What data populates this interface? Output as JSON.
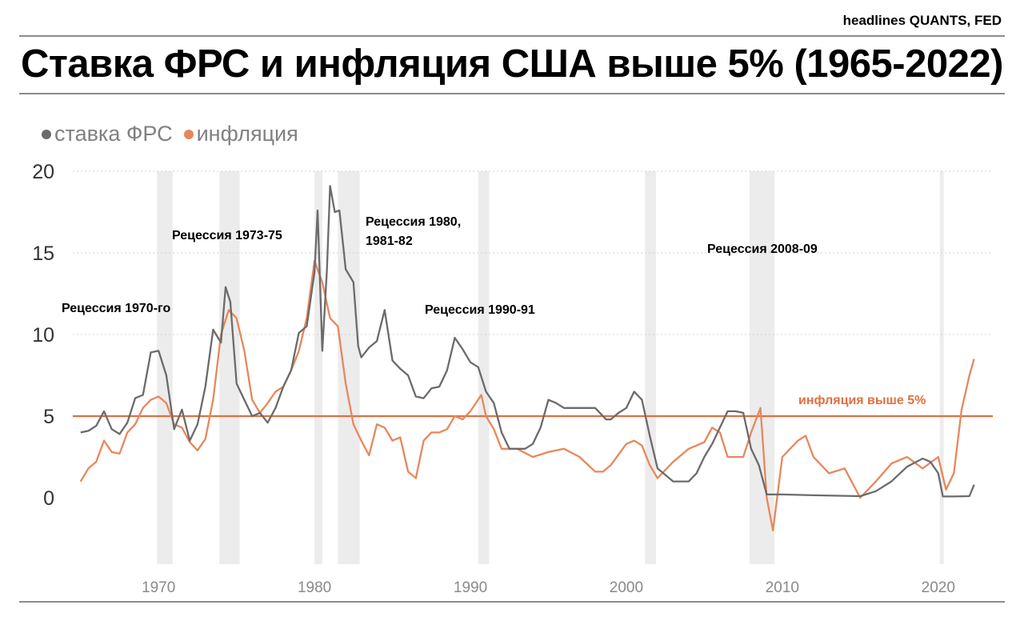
{
  "header": {
    "source": "headlines QUANTS, FED",
    "title": "Ставка ФРС и инфляция США выше 5% (1965-2022)"
  },
  "colors": {
    "fed": "#6b6b6b",
    "inflation": "#e8875a",
    "threshold": "#e07040",
    "recession": "#e6e6e6"
  },
  "legend": [
    {
      "label": "ставка ФРС",
      "color": "#6b6b6b"
    },
    {
      "label": "инфляция",
      "color": "#e8875a"
    }
  ],
  "annotations": {
    "r1970": "Рецессия 1970-го",
    "r1973": "Рецессия 1973-75",
    "r1980_line1": "Рецессия 1980,",
    "r1980_line2": "1981-82",
    "r1990": "Рецессия 1990-91",
    "r2008": "Рецессия 2008-09",
    "threshold_label": "инфляция выше 5%"
  },
  "chart_data": {
    "type": "line",
    "xlim": [
      1964.5,
      2023.5
    ],
    "ylim": [
      -4,
      20
    ],
    "yticks": [
      0,
      5,
      10,
      15,
      20
    ],
    "xticks": [
      1970,
      1980,
      1990,
      2000,
      2010,
      2020
    ],
    "grid": "horizontal dotted",
    "legend_position": "top-left",
    "threshold": 5,
    "recessions": [
      [
        1969.9,
        1970.9
      ],
      [
        1973.9,
        1975.2
      ],
      [
        1980.0,
        1980.5
      ],
      [
        1981.5,
        1982.9
      ],
      [
        1990.5,
        1991.2
      ],
      [
        2001.2,
        2001.9
      ],
      [
        2007.9,
        2009.5
      ],
      [
        2020.1,
        2020.35
      ]
    ],
    "series": [
      {
        "name": "ставка ФРС",
        "x": [
          1965.0,
          1965.5,
          1966.0,
          1966.5,
          1967.0,
          1967.5,
          1968.0,
          1968.5,
          1969.0,
          1969.5,
          1970.0,
          1970.5,
          1971.0,
          1971.5,
          1972.0,
          1972.5,
          1973.0,
          1973.5,
          1974.0,
          1974.3,
          1974.6,
          1975.0,
          1975.5,
          1976.0,
          1976.5,
          1977.0,
          1977.5,
          1978.0,
          1978.5,
          1979.0,
          1979.5,
          1980.0,
          1980.2,
          1980.5,
          1980.8,
          1981.0,
          1981.3,
          1981.6,
          1982.0,
          1982.5,
          1982.8,
          1983.0,
          1983.5,
          1984.0,
          1984.5,
          1985.0,
          1985.5,
          1986.0,
          1986.5,
          1987.0,
          1987.5,
          1988.0,
          1988.5,
          1989.0,
          1989.5,
          1990.0,
          1990.5,
          1991.0,
          1991.5,
          1992.0,
          1992.5,
          1993.0,
          1993.5,
          1994.0,
          1994.5,
          1995.0,
          1995.5,
          1996.0,
          1997.0,
          1998.0,
          1998.7,
          1999.0,
          1999.5,
          2000.0,
          2000.5,
          2001.0,
          2001.5,
          2002.0,
          2003.0,
          2004.0,
          2004.5,
          2005.0,
          2005.5,
          2006.0,
          2006.5,
          2007.0,
          2007.5,
          2008.0,
          2008.5,
          2009.0,
          2010.0,
          2012.0,
          2015.0,
          2016.0,
          2017.0,
          2018.0,
          2019.0,
          2019.5,
          2020.0,
          2020.3,
          2021.0,
          2022.0,
          2022.3
        ],
        "values": [
          4.0,
          4.1,
          4.4,
          5.3,
          4.2,
          3.9,
          4.6,
          6.1,
          6.3,
          8.9,
          9.0,
          7.5,
          4.2,
          5.4,
          3.5,
          4.5,
          6.8,
          10.3,
          9.5,
          12.9,
          12.0,
          7.0,
          6.0,
          5.0,
          5.2,
          4.6,
          5.5,
          6.8,
          7.8,
          10.1,
          10.5,
          13.8,
          17.6,
          9.0,
          14.0,
          19.1,
          17.5,
          17.6,
          14.0,
          13.2,
          9.3,
          8.6,
          9.2,
          9.6,
          11.5,
          8.4,
          7.9,
          7.5,
          6.2,
          6.1,
          6.7,
          6.8,
          7.8,
          9.8,
          9.1,
          8.3,
          8.0,
          6.5,
          5.8,
          4.0,
          3.0,
          3.0,
          3.0,
          3.3,
          4.3,
          6.0,
          5.8,
          5.5,
          5.5,
          5.5,
          4.8,
          4.8,
          5.2,
          5.5,
          6.5,
          6.0,
          3.8,
          1.8,
          1.0,
          1.0,
          1.5,
          2.5,
          3.3,
          4.3,
          5.3,
          5.3,
          5.2,
          3.0,
          2.0,
          0.2,
          0.2,
          0.15,
          0.1,
          0.4,
          1.0,
          1.9,
          2.4,
          2.2,
          1.5,
          0.08,
          0.08,
          0.1,
          0.8
        ]
      },
      {
        "name": "инфляция",
        "x": [
          1965.0,
          1965.5,
          1966.0,
          1966.5,
          1967.0,
          1967.5,
          1968.0,
          1968.5,
          1969.0,
          1969.5,
          1970.0,
          1970.5,
          1971.0,
          1971.5,
          1972.0,
          1972.5,
          1973.0,
          1973.5,
          1974.0,
          1974.5,
          1975.0,
          1975.5,
          1976.0,
          1976.5,
          1977.0,
          1977.5,
          1978.0,
          1978.5,
          1979.0,
          1979.5,
          1980.0,
          1980.5,
          1981.0,
          1981.5,
          1982.0,
          1982.5,
          1983.0,
          1983.5,
          1984.0,
          1984.5,
          1985.0,
          1985.5,
          1986.0,
          1986.5,
          1987.0,
          1987.5,
          1988.0,
          1988.5,
          1989.0,
          1989.5,
          1990.0,
          1990.7,
          1991.0,
          1991.5,
          1992.0,
          1993.0,
          1994.0,
          1995.0,
          1996.0,
          1997.0,
          1998.0,
          1998.5,
          1999.0,
          2000.0,
          2000.5,
          2001.0,
          2001.5,
          2002.0,
          2003.0,
          2004.0,
          2005.0,
          2005.5,
          2006.0,
          2006.5,
          2007.0,
          2007.5,
          2008.0,
          2008.6,
          2009.0,
          2009.4,
          2010.0,
          2011.0,
          2011.5,
          2012.0,
          2013.0,
          2014.0,
          2015.0,
          2016.0,
          2017.0,
          2018.0,
          2019.0,
          2020.0,
          2020.5,
          2021.0,
          2021.5,
          2022.0,
          2022.3
        ],
        "values": [
          1.0,
          1.8,
          2.2,
          3.5,
          2.8,
          2.7,
          4.0,
          4.5,
          5.5,
          6.0,
          6.2,
          5.8,
          4.5,
          4.3,
          3.4,
          2.9,
          3.6,
          6.0,
          10.0,
          11.5,
          11.0,
          9.0,
          6.0,
          5.2,
          5.8,
          6.5,
          6.8,
          7.8,
          9.0,
          11.0,
          14.5,
          13.2,
          11.0,
          10.5,
          7.0,
          4.5,
          3.5,
          2.6,
          4.5,
          4.3,
          3.5,
          3.7,
          1.6,
          1.2,
          3.5,
          4.0,
          4.0,
          4.2,
          5.0,
          4.8,
          5.3,
          6.3,
          5.0,
          4.2,
          3.0,
          3.0,
          2.5,
          2.8,
          3.0,
          2.5,
          1.6,
          1.6,
          2.0,
          3.3,
          3.5,
          3.2,
          2.0,
          1.2,
          2.2,
          3.0,
          3.4,
          4.3,
          4.0,
          2.5,
          2.5,
          2.5,
          4.0,
          5.5,
          0.0,
          -2.0,
          2.5,
          3.5,
          3.8,
          2.5,
          1.5,
          1.8,
          0.0,
          1.0,
          2.1,
          2.5,
          1.8,
          2.5,
          0.5,
          1.5,
          5.4,
          7.5,
          8.5
        ]
      }
    ]
  }
}
